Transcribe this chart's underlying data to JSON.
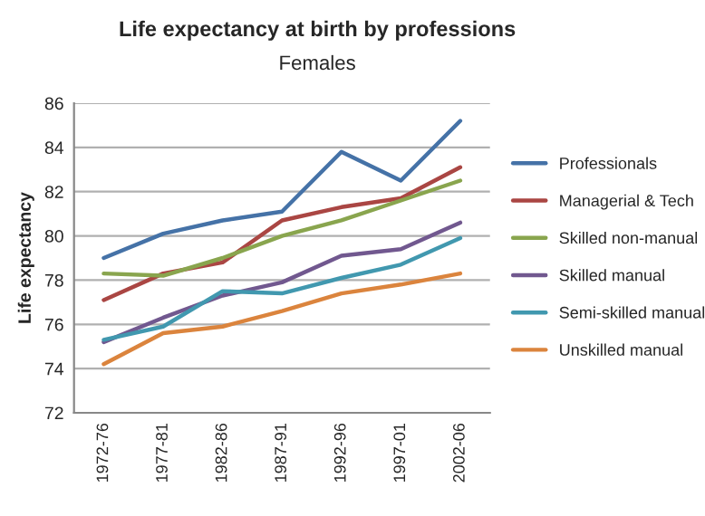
{
  "chart_data": {
    "type": "line",
    "title": "Life expectancy at birth by professions",
    "subtitle": "Females",
    "ylabel": "Life expectancy",
    "categories": [
      "1972-76",
      "1977-81",
      "1982-86",
      "1987-91",
      "1992-96",
      "1997-01",
      "2002-06"
    ],
    "ylim": [
      72,
      86
    ],
    "yticks": [
      72,
      74,
      76,
      78,
      80,
      82,
      84,
      86
    ],
    "grid": "y",
    "legend": "right",
    "marker": "none",
    "line_style": "solid",
    "series": [
      {
        "name": "Professionals",
        "color": "#4572a7",
        "values": [
          79.0,
          80.1,
          80.7,
          81.1,
          83.8,
          82.5,
          85.2
        ]
      },
      {
        "name": "Managerial & Tech",
        "color": "#aa4643",
        "values": [
          77.1,
          78.3,
          78.8,
          80.7,
          81.3,
          81.7,
          83.1
        ]
      },
      {
        "name": "Skilled non-manual",
        "color": "#89a54e",
        "values": [
          78.3,
          78.2,
          79.0,
          80.0,
          80.7,
          81.6,
          82.5
        ]
      },
      {
        "name": "Skilled manual",
        "color": "#71588f",
        "values": [
          75.2,
          76.3,
          77.3,
          77.9,
          79.1,
          79.4,
          80.6
        ]
      },
      {
        "name": "Semi-skilled manual",
        "color": "#4198af",
        "values": [
          75.3,
          75.9,
          77.5,
          77.4,
          78.1,
          78.7,
          79.9
        ]
      },
      {
        "name": "Unskilled manual",
        "color": "#db843d",
        "values": [
          74.2,
          75.6,
          75.9,
          76.6,
          77.4,
          77.8,
          78.3
        ]
      }
    ]
  }
}
